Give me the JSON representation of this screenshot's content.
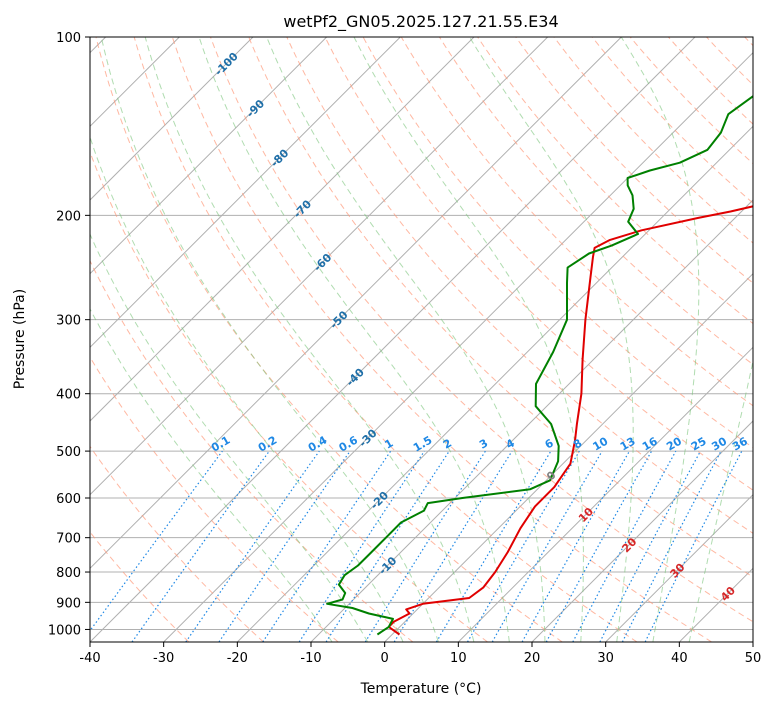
{
  "chart_data": {
    "type": "line",
    "title": "wetPf2_GN05.2025.127.21.55.E34",
    "xlabel": "Temperature (°C)",
    "ylabel": "Pressure (hPa)",
    "xlim": [
      -40,
      50
    ],
    "ylim": [
      1050,
      100
    ],
    "y_scale": "log",
    "grid": true,
    "x_ticks": [
      -40,
      -30,
      -20,
      -10,
      0,
      10,
      20,
      30,
      40,
      50
    ],
    "y_ticks": [
      100,
      200,
      300,
      400,
      500,
      600,
      700,
      800,
      900,
      1000
    ],
    "skew_degrees": 45,
    "series": [
      {
        "color": "#e00000",
        "points": [
          [
            1,
            1020
          ],
          [
            -1.5,
            990
          ],
          [
            -1.5,
            970
          ],
          [
            -0.5,
            940
          ],
          [
            -1.5,
            925
          ],
          [
            0,
            905
          ],
          [
            5.5,
            885
          ],
          [
            6,
            850
          ],
          [
            5.5,
            800
          ],
          [
            4.5,
            740
          ],
          [
            3,
            675
          ],
          [
            2,
            620
          ],
          [
            2,
            575
          ],
          [
            1,
            525
          ],
          [
            -1.5,
            480
          ],
          [
            -3.5,
            450
          ],
          [
            -7,
            400
          ],
          [
            -11.5,
            350
          ],
          [
            -16.5,
            300
          ],
          [
            -21.5,
            255
          ],
          [
            -24,
            235
          ],
          [
            -25,
            227
          ],
          [
            -24,
            220
          ],
          [
            -21,
            212
          ],
          [
            -15,
            202
          ],
          [
            -11.5,
            197
          ],
          [
            -6,
            188
          ],
          [
            -2.5,
            180
          ],
          [
            2,
            165
          ],
          [
            8,
            145
          ],
          [
            14,
            130
          ],
          [
            20,
            122
          ],
          [
            24,
            116
          ],
          [
            26,
            113
          ],
          [
            27.5,
            110
          ],
          [
            31,
            105
          ],
          [
            35.5,
            100
          ]
        ]
      },
      {
        "color": "#008000",
        "points": [
          [
            -2,
            1020
          ],
          [
            -1.5,
            990
          ],
          [
            -2,
            960
          ],
          [
            -6,
            940
          ],
          [
            -9,
            920
          ],
          [
            -13,
            905
          ],
          [
            -11.5,
            890
          ],
          [
            -12,
            868
          ],
          [
            -14,
            840
          ],
          [
            -14.5,
            810
          ],
          [
            -14,
            780
          ],
          [
            -14,
            740
          ],
          [
            -14,
            700
          ],
          [
            -14,
            660
          ],
          [
            -12.5,
            630
          ],
          [
            -13,
            612
          ],
          [
            -9,
            600
          ],
          [
            -1,
            580
          ],
          [
            0.5,
            560
          ],
          [
            -1,
            520
          ],
          [
            -3,
            490
          ],
          [
            -7,
            450
          ],
          [
            -11.5,
            420
          ],
          [
            -14.5,
            385
          ],
          [
            -16.5,
            340
          ],
          [
            -19,
            300
          ],
          [
            -24,
            260
          ],
          [
            -26,
            245
          ],
          [
            -25,
            232
          ],
          [
            -23,
            225
          ],
          [
            -21,
            215
          ],
          [
            -24,
            205
          ],
          [
            -25,
            195
          ],
          [
            -27,
            185
          ],
          [
            -29,
            178
          ],
          [
            -30,
            173
          ],
          [
            -28,
            168
          ],
          [
            -25,
            163
          ],
          [
            -23,
            155
          ],
          [
            -23.5,
            145
          ],
          [
            -25,
            135
          ],
          [
            -24,
            125
          ],
          [
            -22,
            115
          ],
          [
            -21.5,
            100
          ]
        ]
      }
    ],
    "dry_adiabats": [
      -30,
      -20,
      -10,
      0,
      10,
      20,
      30,
      40,
      50,
      60,
      70,
      80,
      90,
      100,
      110,
      120,
      130,
      140,
      150,
      160,
      170,
      180,
      190,
      200
    ],
    "moist_adiabats": [
      -10,
      -5,
      0,
      5,
      10,
      15,
      20,
      25,
      30,
      35,
      40
    ],
    "mixing_ratio_labels": [
      "0.1",
      "0.2",
      "0.4",
      "0.6",
      "1",
      "1.5",
      "2",
      "3",
      "4",
      "6",
      "8",
      "10",
      "13",
      "16",
      "20",
      "25",
      "30",
      "36"
    ],
    "mixing_ratios": [
      0.1,
      0.2,
      0.4,
      0.6,
      1,
      1.5,
      2,
      3,
      4,
      6,
      8,
      10,
      13,
      16,
      20,
      25,
      30,
      36
    ],
    "isotherm_labels": [
      "-100",
      "-90",
      "-80",
      "-70",
      "-60",
      "-50",
      "-40",
      "-30",
      "-20",
      "-10"
    ],
    "isotherm_values": [
      -100,
      -90,
      -80,
      -70,
      -60,
      -50,
      -40,
      -30,
      -20,
      -10
    ],
    "isotherm_label_pressures": [
      111,
      132,
      160,
      195,
      240,
      300,
      375,
      475,
      605,
      780
    ],
    "warm_labels": [
      "0",
      "10",
      "20",
      "30",
      "40"
    ],
    "warm_values": [
      0,
      10,
      20,
      30,
      40
    ],
    "warm_label_pressures": [
      550,
      640,
      720,
      795,
      870
    ],
    "colors": {
      "temperature": "#e00000",
      "dewpoint": "#008000",
      "isotherm_label": "#1f6fa8",
      "warm_label_zero": "#808080",
      "warm_label": "#d62728",
      "mixing_ratio": "#1e88e5",
      "dry_adiabat": "#ff9a7a",
      "moist_adiabat": "#7cc47c",
      "grid": "#b0b0b0"
    }
  }
}
